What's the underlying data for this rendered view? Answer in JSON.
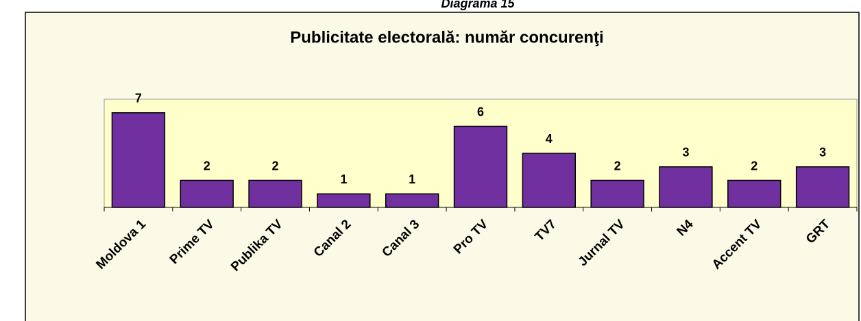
{
  "caption": "Diagrama 15",
  "chart_data": {
    "type": "bar",
    "title": "Publicitate electorală: număr concurenţi",
    "categories": [
      "Moldova 1",
      "Prime TV",
      "Publika TV",
      "Canal 2",
      "Canal 3",
      "Pro TV",
      "TV7",
      "Jurnal TV",
      "N4",
      "Accent TV",
      "GRT"
    ],
    "values": [
      7,
      2,
      2,
      1,
      1,
      6,
      4,
      2,
      3,
      2,
      3
    ],
    "color": "#7030a0",
    "ylim": [
      0,
      8
    ]
  }
}
